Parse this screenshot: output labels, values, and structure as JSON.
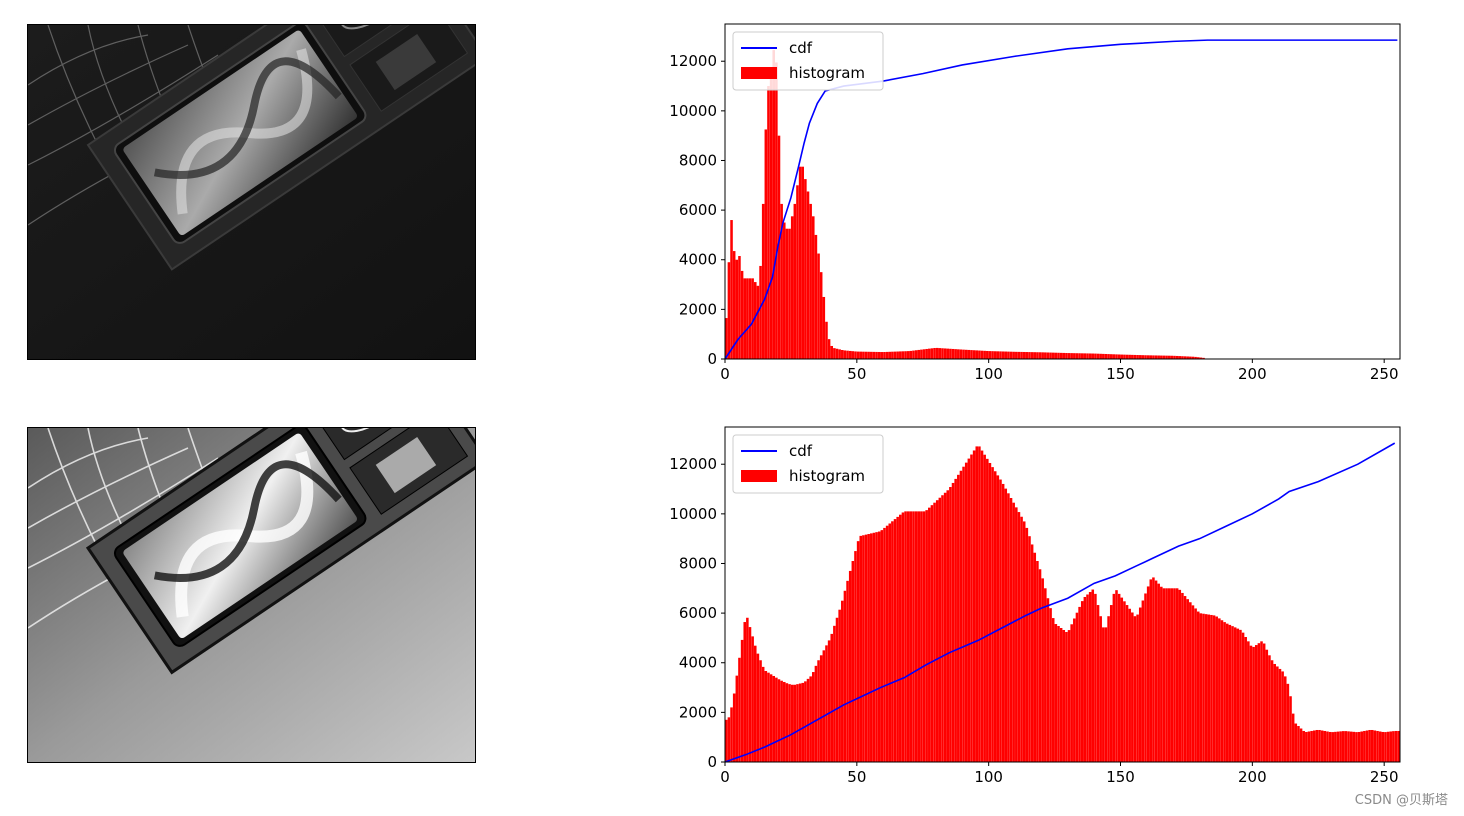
{
  "images": [
    {
      "name": "original-grayscale-photo",
      "subject": "phone-box-dark"
    },
    {
      "name": "equalized-grayscale-photo",
      "subject": "phone-box-bright"
    }
  ],
  "colors": {
    "cdf": "#0000ff",
    "histogram": "#ff0000",
    "axis": "#000000"
  },
  "watermark": "CSDN @贝斯塔",
  "chart_data": [
    {
      "type": "bar",
      "xlim": [
        0,
        256
      ],
      "ylim": [
        0,
        13500
      ],
      "xticks": [
        0,
        50,
        100,
        150,
        200,
        250
      ],
      "yticks": [
        0,
        2000,
        4000,
        6000,
        8000,
        10000,
        12000
      ],
      "legend": {
        "position": "top-left",
        "entries": [
          {
            "label": "cdf",
            "kind": "line",
            "color": "#0000ff"
          },
          {
            "label": "histogram",
            "kind": "patch",
            "color": "#ff0000"
          }
        ]
      },
      "histogram_points": [
        [
          0,
          1500
        ],
        [
          1,
          1800
        ],
        [
          2,
          6000
        ],
        [
          3,
          5200
        ],
        [
          4,
          3500
        ],
        [
          5,
          4500
        ],
        [
          6,
          3800
        ],
        [
          7,
          3300
        ],
        [
          8,
          3200
        ],
        [
          9,
          3300
        ],
        [
          10,
          3200
        ],
        [
          11,
          3300
        ],
        [
          12,
          2900
        ],
        [
          13,
          3000
        ],
        [
          14,
          4500
        ],
        [
          15,
          8000
        ],
        [
          16,
          10500
        ],
        [
          17,
          11500
        ],
        [
          18,
          12000
        ],
        [
          19,
          12900
        ],
        [
          20,
          11000
        ],
        [
          21,
          7000
        ],
        [
          22,
          5500
        ],
        [
          23,
          5500
        ],
        [
          24,
          5000
        ],
        [
          25,
          5500
        ],
        [
          26,
          6000
        ],
        [
          27,
          6500
        ],
        [
          28,
          7500
        ],
        [
          29,
          8000
        ],
        [
          30,
          7500
        ],
        [
          31,
          7000
        ],
        [
          32,
          6500
        ],
        [
          33,
          6000
        ],
        [
          34,
          5500
        ],
        [
          35,
          4500
        ],
        [
          36,
          4000
        ],
        [
          37,
          3000
        ],
        [
          38,
          2000
        ],
        [
          39,
          1000
        ],
        [
          40,
          600
        ],
        [
          41,
          450
        ],
        [
          45,
          350
        ],
        [
          50,
          300
        ],
        [
          60,
          280
        ],
        [
          70,
          320
        ],
        [
          80,
          450
        ],
        [
          90,
          380
        ],
        [
          100,
          320
        ],
        [
          110,
          290
        ],
        [
          120,
          270
        ],
        [
          130,
          240
        ],
        [
          140,
          220
        ],
        [
          150,
          180
        ],
        [
          160,
          150
        ],
        [
          170,
          130
        ],
        [
          178,
          90
        ],
        [
          182,
          40
        ],
        [
          183,
          0
        ],
        [
          255,
          0
        ]
      ],
      "cdf_points": [
        [
          0,
          0
        ],
        [
          5,
          800
        ],
        [
          10,
          1400
        ],
        [
          15,
          2400
        ],
        [
          18,
          3300
        ],
        [
          20,
          4500
        ],
        [
          22,
          5500
        ],
        [
          25,
          6500
        ],
        [
          28,
          7800
        ],
        [
          30,
          8700
        ],
        [
          32,
          9500
        ],
        [
          35,
          10300
        ],
        [
          38,
          10800
        ],
        [
          45,
          11000
        ],
        [
          60,
          11200
        ],
        [
          75,
          11500
        ],
        [
          90,
          11850
        ],
        [
          110,
          12200
        ],
        [
          130,
          12500
        ],
        [
          150,
          12680
        ],
        [
          170,
          12800
        ],
        [
          183,
          12850
        ],
        [
          200,
          12850
        ],
        [
          255,
          12850
        ]
      ]
    },
    {
      "type": "bar",
      "xlim": [
        0,
        256
      ],
      "ylim": [
        0,
        13500
      ],
      "xticks": [
        0,
        50,
        100,
        150,
        200,
        250
      ],
      "yticks": [
        0,
        2000,
        4000,
        6000,
        8000,
        10000,
        12000
      ],
      "legend": {
        "position": "top-left",
        "entries": [
          {
            "label": "cdf",
            "kind": "line",
            "color": "#0000ff"
          },
          {
            "label": "histogram",
            "kind": "patch",
            "color": "#ff0000"
          }
        ]
      },
      "histogram_points": [
        [
          0,
          1800
        ],
        [
          1,
          1600
        ],
        [
          3,
          2400
        ],
        [
          8,
          6000
        ],
        [
          12,
          4500
        ],
        [
          15,
          3700
        ],
        [
          18,
          3500
        ],
        [
          21,
          3300
        ],
        [
          24,
          3150
        ],
        [
          26,
          3100
        ],
        [
          28,
          3150
        ],
        [
          30,
          3200
        ],
        [
          33,
          3500
        ],
        [
          35,
          4000
        ],
        [
          40,
          5000
        ],
        [
          44,
          6300
        ],
        [
          51,
          9100
        ],
        [
          59,
          9300
        ],
        [
          68,
          10100
        ],
        [
          76,
          10100
        ],
        [
          85,
          11000
        ],
        [
          96,
          12800
        ],
        [
          105,
          11300
        ],
        [
          114,
          9600
        ],
        [
          120,
          7600
        ],
        [
          125,
          5600
        ],
        [
          130,
          5200
        ],
        [
          136,
          6600
        ],
        [
          140,
          7000
        ],
        [
          144,
          5200
        ],
        [
          148,
          7000
        ],
        [
          156,
          5800
        ],
        [
          162,
          7500
        ],
        [
          166,
          7000
        ],
        [
          172,
          7000
        ],
        [
          176,
          6500
        ],
        [
          180,
          6000
        ],
        [
          186,
          5900
        ],
        [
          190,
          5600
        ],
        [
          196,
          5300
        ],
        [
          200,
          4600
        ],
        [
          204,
          4900
        ],
        [
          206,
          4400
        ],
        [
          208,
          4000
        ],
        [
          210,
          3800
        ],
        [
          212,
          3600
        ],
        [
          214,
          3000
        ],
        [
          216,
          1600
        ],
        [
          220,
          1200
        ],
        [
          225,
          1300
        ],
        [
          230,
          1200
        ],
        [
          235,
          1250
        ],
        [
          240,
          1200
        ],
        [
          245,
          1300
        ],
        [
          250,
          1200
        ],
        [
          254,
          1250
        ]
      ],
      "cdf_points": [
        [
          0,
          0
        ],
        [
          8,
          300
        ],
        [
          15,
          600
        ],
        [
          25,
          1100
        ],
        [
          35,
          1700
        ],
        [
          45,
          2300
        ],
        [
          51,
          2600
        ],
        [
          59,
          3000
        ],
        [
          68,
          3400
        ],
        [
          76,
          3900
        ],
        [
          85,
          4400
        ],
        [
          96,
          4900
        ],
        [
          105,
          5400
        ],
        [
          114,
          5900
        ],
        [
          120,
          6200
        ],
        [
          130,
          6600
        ],
        [
          140,
          7200
        ],
        [
          148,
          7500
        ],
        [
          156,
          7900
        ],
        [
          162,
          8200
        ],
        [
          172,
          8700
        ],
        [
          180,
          9000
        ],
        [
          190,
          9500
        ],
        [
          200,
          10000
        ],
        [
          210,
          10600
        ],
        [
          214,
          10900
        ],
        [
          225,
          11300
        ],
        [
          240,
          12000
        ],
        [
          254,
          12850
        ]
      ]
    }
  ]
}
